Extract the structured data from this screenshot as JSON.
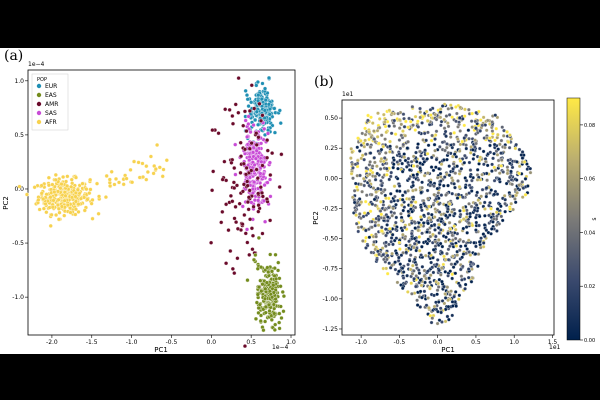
{
  "chart_data": [
    {
      "panel_label": "(a)",
      "type": "scatter",
      "xlabel": "PC1",
      "ylabel": "PC2",
      "x_offset_text": "1e−4",
      "y_offset_text": "1e−4",
      "xlim": [
        -2.3,
        1.05
      ],
      "ylim": [
        -1.35,
        1.1
      ],
      "xticks": [
        "-2.0",
        "-1.5",
        "-1.0",
        "-0.5",
        "0.0",
        "0.5",
        "1.0"
      ],
      "xtick_values": [
        -2.0,
        -1.5,
        -1.0,
        -0.5,
        0.0,
        0.5,
        1.0
      ],
      "yticks": [
        "-1.0",
        "-0.5",
        "0.0",
        "0.5",
        "1.0"
      ],
      "ytick_values": [
        -1.0,
        -0.5,
        0.0,
        0.5,
        1.0
      ],
      "legend": {
        "title": "POP",
        "placement": "top-left",
        "entries": [
          {
            "name": "EUR",
            "color": "#1f8fb4"
          },
          {
            "name": "EAS",
            "color": "#748c1d"
          },
          {
            "name": "AMR",
            "color": "#6a0a2a"
          },
          {
            "name": "SAS",
            "color": "#c84bd6"
          },
          {
            "name": "AFR",
            "color": "#f7d24f"
          }
        ]
      },
      "clusters": [
        {
          "pop": "AFR",
          "center": [
            -1.85,
            -0.07
          ],
          "spread": [
            0.16,
            0.08
          ],
          "count": 320
        },
        {
          "pop": "AFR",
          "trail_from": [
            -1.7,
            -0.05
          ],
          "trail_to": [
            -0.6,
            0.25
          ],
          "count": 45
        },
        {
          "pop": "EUR",
          "center": [
            0.62,
            0.72
          ],
          "spread": [
            0.09,
            0.1
          ],
          "count": 200
        },
        {
          "pop": "SAS",
          "center": [
            0.55,
            0.2
          ],
          "spread": [
            0.09,
            0.17
          ],
          "count": 230
        },
        {
          "pop": "AMR",
          "center": [
            0.45,
            0.0
          ],
          "spread": [
            0.18,
            0.45
          ],
          "count": 120
        },
        {
          "pop": "EAS",
          "center": [
            0.72,
            -0.98
          ],
          "spread": [
            0.08,
            0.15
          ],
          "count": 220
        }
      ]
    },
    {
      "panel_label": "(b)",
      "type": "scatter",
      "xlabel": "PC1",
      "ylabel": "PC2",
      "x_offset_text": "1e1",
      "y_offset_text": "1e1",
      "xlim": [
        -1.25,
        1.52
      ],
      "ylim": [
        -1.3,
        0.65
      ],
      "xticks": [
        "-1.0",
        "-0.5",
        "0.0",
        "0.5",
        "1.0",
        "1.5"
      ],
      "xtick_values": [
        -1.0,
        -0.5,
        0.0,
        0.5,
        1.0,
        1.5
      ],
      "yticks": [
        "-1.25",
        "-1.00",
        "-0.75",
        "-0.50",
        "-0.25",
        "0.00",
        "0.25",
        "0.50"
      ],
      "ytick_values": [
        -1.25,
        -1.0,
        -0.75,
        -0.5,
        -0.25,
        0.0,
        0.25,
        0.5
      ],
      "colorbar": {
        "label": "s",
        "range": [
          0.0,
          0.09
        ],
        "ticks": [
          "0.00",
          "0.02",
          "0.04",
          "0.06",
          "0.08"
        ],
        "tick_values": [
          0.0,
          0.02,
          0.04,
          0.06,
          0.08
        ],
        "colormap": "cividis"
      },
      "hull": [
        [
          -1.15,
          0.22
        ],
        [
          -0.9,
          0.55
        ],
        [
          0.0,
          0.62
        ],
        [
          0.7,
          0.58
        ],
        [
          1.25,
          0.1
        ],
        [
          1.2,
          -0.1
        ],
        [
          0.7,
          -0.5
        ],
        [
          0.2,
          -1.2
        ],
        [
          -0.05,
          -1.22
        ],
        [
          -1.0,
          -0.55
        ],
        [
          -1.1,
          -0.3
        ]
      ],
      "point_count": 1700
    }
  ]
}
